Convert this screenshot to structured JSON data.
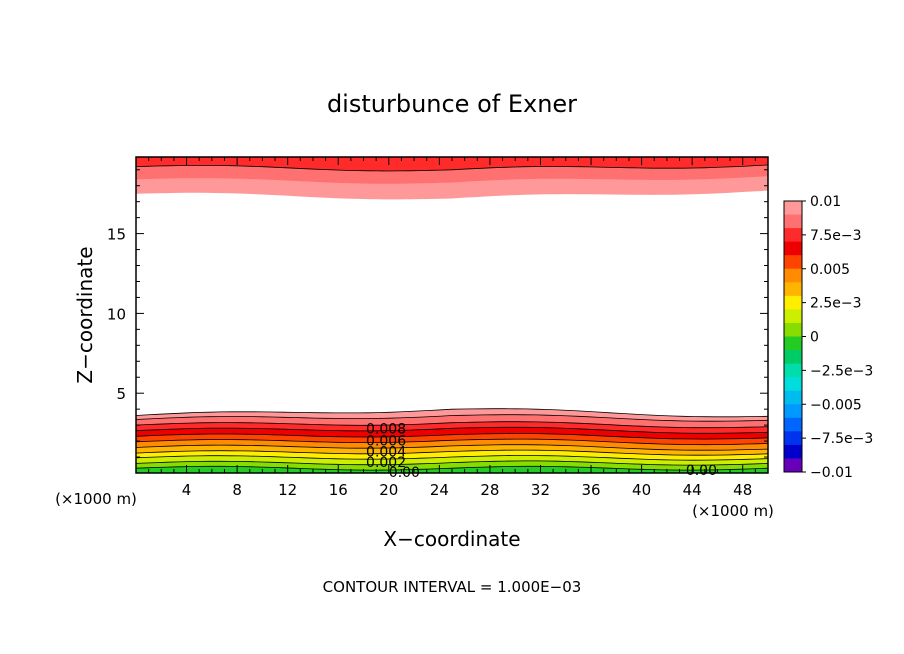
{
  "chart_data": {
    "type": "contour",
    "title": "disturbunce of Exner",
    "xlabel": "X−coordinate",
    "ylabel": "Z−coordinate",
    "x_unit_left": "(×1000 m)",
    "x_unit_right": "(×1000 m)",
    "footer": "CONTOUR INTERVAL = 1.000E−03",
    "xlim": [
      0,
      50
    ],
    "ylim": [
      0,
      19.8
    ],
    "x_ticks": [
      4,
      8,
      12,
      16,
      20,
      24,
      28,
      32,
      36,
      40,
      44,
      48
    ],
    "x_tick_labels": [
      "4",
      "8",
      "12",
      "16",
      "20",
      "24",
      "28",
      "32",
      "36",
      "40",
      "44",
      "48"
    ],
    "y_ticks": [
      5,
      10,
      15
    ],
    "y_tick_labels": [
      "5",
      "10",
      "15"
    ],
    "contour_interval": 0.001,
    "contour_labels": [
      {
        "text": "0.008",
        "x": 18.2,
        "z": 2.8
      },
      {
        "text": "0.006",
        "x": 18.2,
        "z": 2.05
      },
      {
        "text": "0.004",
        "x": 18.2,
        "z": 1.35
      },
      {
        "text": "0.002",
        "x": 18.2,
        "z": 0.68
      },
      {
        "text": "0.00",
        "x": 20.0,
        "z": 0.05
      },
      {
        "text": "0.00",
        "x": 43.5,
        "z": 0.2
      }
    ],
    "colorbar": {
      "tick_labels": [
        "0.01",
        "7.5e−3",
        "0.005",
        "2.5e−3",
        "0",
        "−2.5e−3",
        "−0.005",
        "−7.5e−3",
        "−0.01"
      ],
      "levels": [
        0.01,
        0.009,
        0.008,
        0.007,
        0.006,
        0.005,
        0.004,
        0.003,
        0.002,
        0.001,
        0,
        -0.001,
        -0.002,
        -0.003,
        -0.004,
        -0.005,
        -0.006,
        -0.007,
        -0.008,
        -0.009,
        -0.01
      ],
      "colors": [
        "#ff9999",
        "#ff7070",
        "#ff2a2a",
        "#ee0000",
        "#ff4400",
        "#ff8c00",
        "#ffb400",
        "#ffee00",
        "#ccee00",
        "#88dd00",
        "#22cc22",
        "#00cc66",
        "#00ddaa",
        "#00dddd",
        "#00bbee",
        "#0099ff",
        "#0066ff",
        "#0033ee",
        "#0000cc",
        "#6600bb"
      ]
    },
    "bands_bottom": [
      {
        "color": "#22cc22",
        "z_left": 0.3,
        "z_mid": 0.3,
        "z_right": 0.3
      },
      {
        "color": "#88dd00",
        "z_left": 0.6,
        "z_mid": 0.65,
        "z_right": 0.6
      },
      {
        "color": "#ccee00",
        "z_left": 0.95,
        "z_mid": 1.0,
        "z_right": 0.9
      },
      {
        "color": "#ffee00",
        "z_left": 1.25,
        "z_mid": 1.35,
        "z_right": 1.2
      },
      {
        "color": "#ffb400",
        "z_left": 1.6,
        "z_mid": 1.7,
        "z_right": 1.5
      },
      {
        "color": "#ff8c00",
        "z_left": 1.95,
        "z_mid": 2.05,
        "z_right": 1.85
      },
      {
        "color": "#ff4400",
        "z_left": 2.3,
        "z_mid": 2.4,
        "z_right": 2.2
      },
      {
        "color": "#ee0000",
        "z_left": 2.65,
        "z_mid": 2.8,
        "z_right": 2.55
      },
      {
        "color": "#ff2a2a",
        "z_left": 3.0,
        "z_mid": 3.15,
        "z_right": 2.9
      },
      {
        "color": "#ff7070",
        "z_left": 3.35,
        "z_mid": 3.6,
        "z_right": 3.3
      },
      {
        "color": "#ff9999",
        "z_left": 3.6,
        "z_mid": 4.0,
        "z_right": 3.55
      }
    ],
    "bands_top": [
      {
        "color": "#ff9999",
        "z_left": 17.5,
        "z_mid": 17.2,
        "z_right": 17.7
      },
      {
        "color": "#ff7070",
        "z_left": 18.4,
        "z_mid": 18.2,
        "z_right": 18.6
      },
      {
        "color": "#ff2a2a",
        "z_left": 19.2,
        "z_mid": 19.0,
        "z_right": 19.3
      }
    ]
  }
}
